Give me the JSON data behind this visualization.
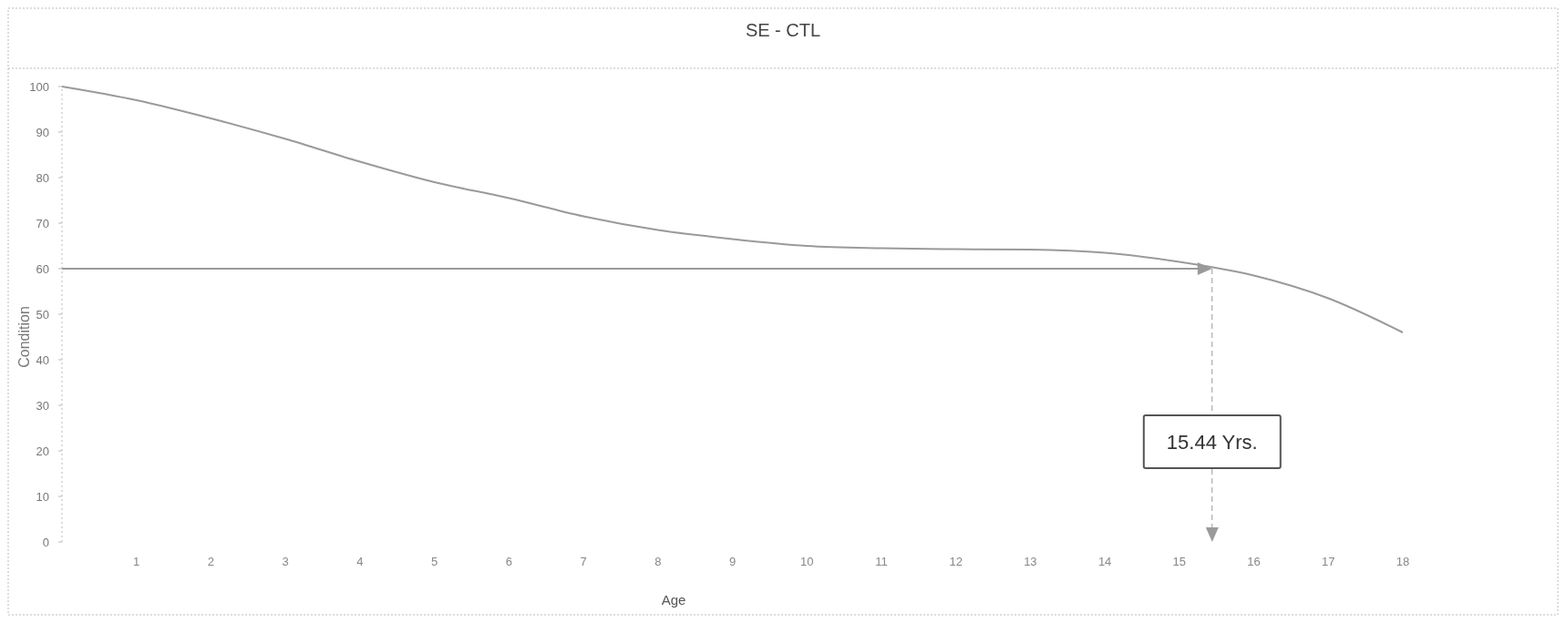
{
  "chart_data": {
    "type": "line",
    "title": "SE - CTL",
    "xlabel": "Age",
    "ylabel": "Condition",
    "x": [
      0,
      1,
      2,
      3,
      4,
      5,
      6,
      7,
      8,
      9,
      10,
      11,
      12,
      13,
      14,
      15,
      16,
      17,
      18
    ],
    "series": [
      {
        "color": "#9a9a9a",
        "values": [
          100,
          97,
          93,
          88.5,
          83.5,
          79,
          75.5,
          71.5,
          68.5,
          66.5,
          65,
          64.5,
          64.3,
          64.2,
          63.5,
          61.5,
          58.5,
          53.5,
          46
        ]
      }
    ],
    "xlim": [
      0,
      18
    ],
    "xticks": [
      1,
      2,
      3,
      4,
      5,
      6,
      7,
      8,
      9,
      10,
      11,
      12,
      13,
      14,
      15,
      16,
      17,
      18
    ],
    "ylim": [
      0,
      100
    ],
    "yticks": [
      0,
      10,
      20,
      30,
      40,
      50,
      60,
      70,
      80,
      90,
      100
    ],
    "ref_lines": [
      {
        "axis": "y",
        "value": 60,
        "color": "#9a9a9a"
      },
      {
        "axis": "x",
        "value": 15.44,
        "color": "#9a9a9a",
        "line_style": "dashed"
      }
    ],
    "annotations": [
      {
        "text": "15.44 Yrs.",
        "x": 15.44,
        "y": 22
      }
    ],
    "grid": false,
    "marker": "none",
    "line_style": "solid"
  }
}
